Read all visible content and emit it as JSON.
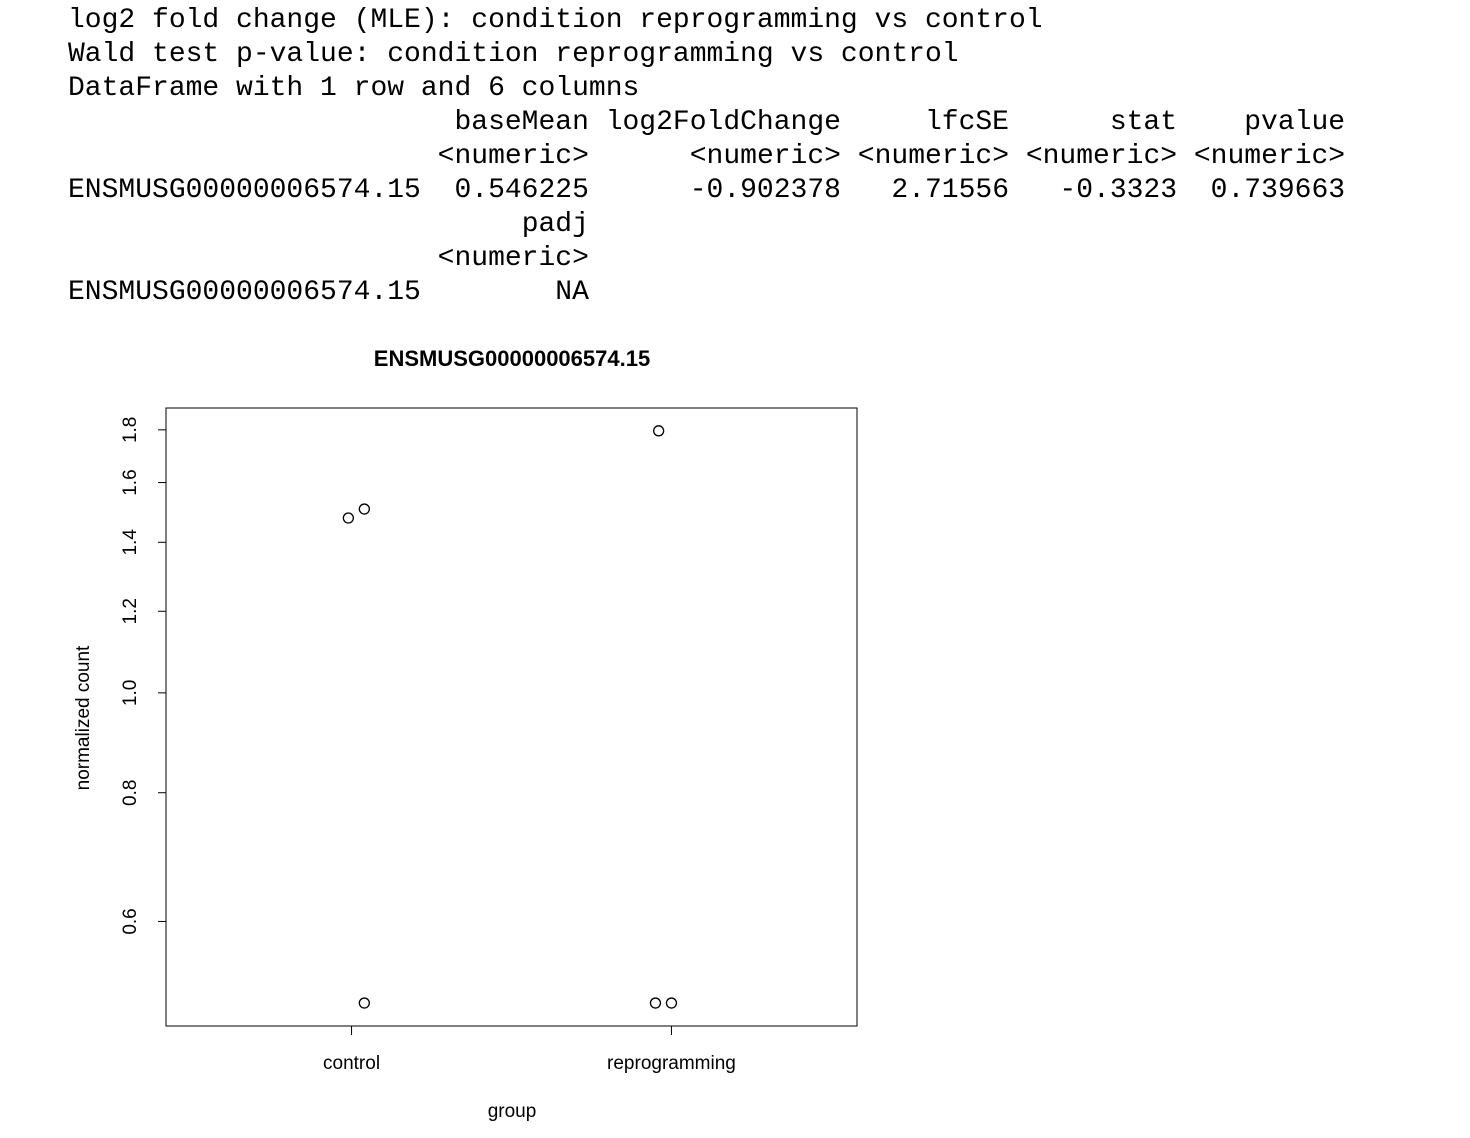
{
  "console": {
    "lines": [
      "log2 fold change (MLE): condition reprogramming vs control",
      "Wald test p-value: condition reprogramming vs control",
      "DataFrame with 1 row and 6 columns"
    ],
    "table": {
      "row_name": "ENSMUSG00000006574.15",
      "columns": [
        "baseMean",
        "log2FoldChange",
        "lfcSE",
        "stat",
        "pvalue",
        "padj"
      ],
      "types": [
        "<numeric>",
        "<numeric>",
        "<numeric>",
        "<numeric>",
        "<numeric>",
        "<numeric>"
      ],
      "values": [
        0.546225,
        -0.902378,
        2.71556,
        -0.3323,
        0.739663,
        "NA"
      ]
    }
  },
  "chart_data": {
    "type": "scatter",
    "title": "ENSMUSG00000006574.15",
    "x_label": "group",
    "y_label": "normalized count",
    "xlim": [
      0.42,
      2.58
    ],
    "ylim": [
      0.475,
      1.89
    ],
    "log_y": true,
    "xticks": [
      {
        "value": 1,
        "label": "control"
      },
      {
        "value": 2,
        "label": "reprogramming"
      }
    ],
    "yticks": [
      0.6,
      0.8,
      {
        "value": 1,
        "label": "1.0"
      },
      1.2,
      1.4,
      1.6,
      1.8
    ],
    "x": [
      0.99,
      1.04,
      1.04,
      1.96,
      1.95,
      2.0
    ],
    "values": [
      1.478,
      1.508,
      0.5,
      1.796,
      0.5,
      0.5
    ],
    "color": "#000000"
  }
}
